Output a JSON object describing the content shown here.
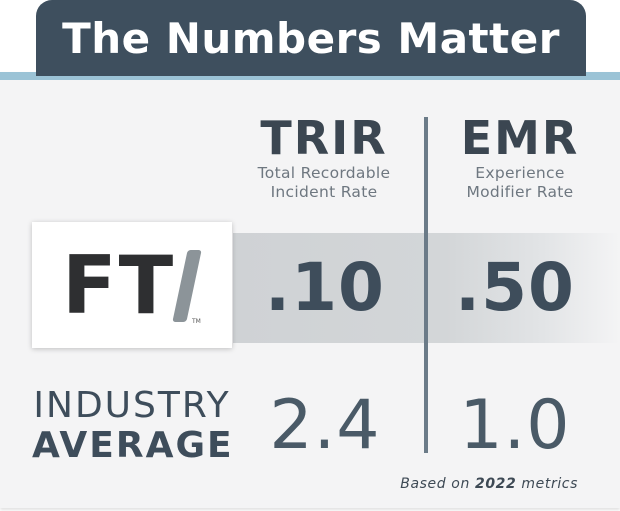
{
  "header": {
    "title": "The Numbers Matter"
  },
  "columns": {
    "trir": {
      "abbr": "TRIR",
      "line1": "Total Recordable",
      "line2": "Incident Rate"
    },
    "emr": {
      "abbr": "EMR",
      "line1": "Experience",
      "line2": "Modifier Rate"
    }
  },
  "fti": {
    "logo_text": "FT",
    "logo_tm": "TM",
    "trir": ".10",
    "emr": ".50"
  },
  "industry": {
    "line1": "INDUSTRY",
    "line2": "AVERAGE",
    "trir": "2.4",
    "emr": "1.0"
  },
  "footnote": {
    "prefix": "Based on",
    "year": "2022",
    "suffix": "metrics"
  },
  "colors": {
    "header_bg": "#3e4f5e",
    "accent_bar": "#9bc3d6",
    "text_dark": "#3e4d5b",
    "divider": "#6b7b88"
  }
}
